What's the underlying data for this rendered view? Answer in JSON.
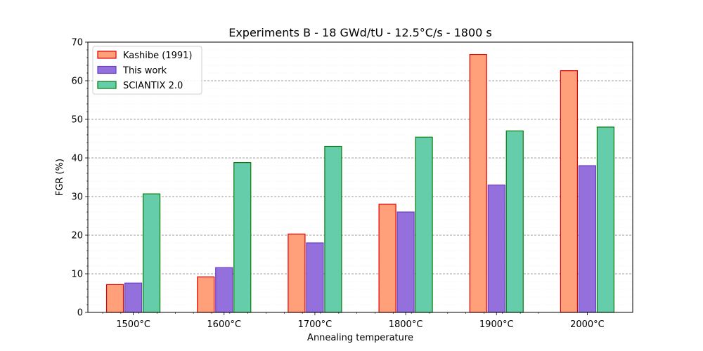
{
  "chart_data": {
    "type": "bar",
    "title": "Experiments B - 18 GWd/tU - 12.5°C/s - 1800 s",
    "xlabel": "Annealing temperature",
    "ylabel": "FGR (%)",
    "ylim": [
      0,
      70
    ],
    "yticks": [
      0,
      10,
      20,
      30,
      40,
      50,
      60,
      70
    ],
    "grid": "y-major-dashed-and-minor",
    "legend_position": "top-left",
    "categories": [
      "1500°C",
      "1600°C",
      "1700°C",
      "1800°C",
      "1900°C",
      "2000°C"
    ],
    "series": [
      {
        "name": "Kashibe (1991)",
        "values": [
          7.2,
          9.2,
          20.3,
          28.0,
          66.8,
          62.6
        ],
        "fill": "#FFA07A",
        "stroke": "#E00000"
      },
      {
        "name": "This work",
        "values": [
          7.6,
          11.6,
          18.0,
          26.0,
          33.0,
          38.0
        ],
        "fill": "#9370DB",
        "stroke": "#6A3DC4"
      },
      {
        "name": "SCIANTIX 2.0",
        "values": [
          30.7,
          38.8,
          43.0,
          45.4,
          47.0,
          48.0
        ],
        "fill": "#66CDAA",
        "stroke": "#0A7A0A"
      }
    ]
  }
}
